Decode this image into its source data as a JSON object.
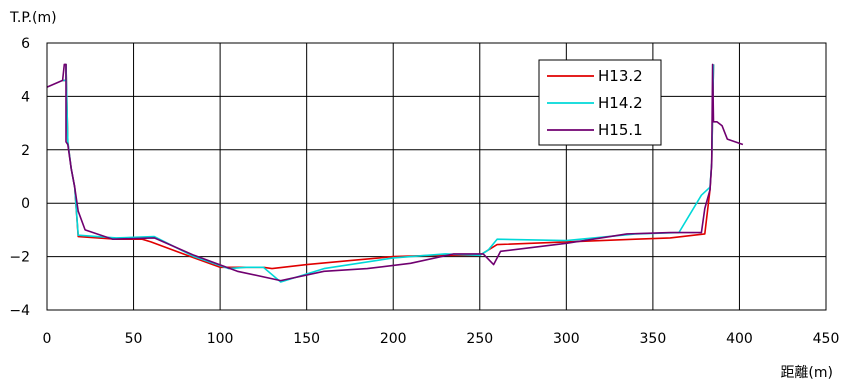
{
  "chart_data": {
    "type": "line",
    "title": "",
    "xlabel": "距離(m)",
    "ylabel": "T.P.(m)",
    "xlim": [
      0,
      450
    ],
    "ylim": [
      -4,
      6
    ],
    "xticks": [
      0,
      50,
      100,
      150,
      200,
      250,
      300,
      350,
      400,
      450
    ],
    "yticks": [
      6,
      4,
      2,
      0,
      -2,
      -4
    ],
    "ytick_labels": [
      "6",
      "4",
      "2",
      "0",
      "−2",
      "−4"
    ],
    "grid": true,
    "legend_position": "top-right",
    "series": [
      {
        "name": "H13.2",
        "color": "#e00000",
        "x": [
          9,
          11,
          11,
          12,
          14,
          16,
          18,
          40,
          55,
          60,
          85,
          100,
          110,
          125,
          130,
          150,
          175,
          200,
          225,
          250,
          255,
          260,
          300,
          340,
          360,
          380,
          383,
          384,
          385
        ],
        "y": [
          4.6,
          4.6,
          5.2,
          2.3,
          1.3,
          0.6,
          -1.25,
          -1.35,
          -1.35,
          -1.45,
          -2.05,
          -2.4,
          -2.4,
          -2.4,
          -2.45,
          -2.3,
          -2.15,
          -2.0,
          -1.95,
          -1.95,
          -1.75,
          -1.55,
          -1.45,
          -1.35,
          -1.3,
          -1.15,
          0.5,
          1.5,
          5.2
        ]
      },
      {
        "name": "H14.2",
        "color": "#00d8d8",
        "x": [
          9,
          11,
          11,
          12,
          14,
          16,
          18,
          40,
          62,
          85,
          105,
          115,
          125,
          135,
          160,
          200,
          230,
          250,
          255,
          260,
          300,
          340,
          365,
          378,
          383,
          384,
          385
        ],
        "y": [
          4.6,
          4.6,
          5.2,
          2.3,
          1.3,
          0.6,
          -1.2,
          -1.3,
          -1.25,
          -2.0,
          -2.45,
          -2.4,
          -2.4,
          -2.95,
          -2.45,
          -2.05,
          -1.9,
          -1.95,
          -1.75,
          -1.35,
          -1.4,
          -1.15,
          -1.1,
          0.3,
          0.6,
          1.5,
          5.2
        ]
      },
      {
        "name": "H15.1",
        "color": "#700070",
        "x": [
          0,
          9,
          10,
          11,
          11,
          12,
          14,
          16,
          18,
          22,
          38,
          62,
          85,
          110,
          135,
          160,
          185,
          210,
          235,
          252,
          258,
          262,
          300,
          335,
          360,
          378,
          380,
          383,
          384,
          384.5,
          385,
          387,
          390,
          393,
          402
        ],
        "y": [
          4.35,
          4.6,
          5.2,
          5.2,
          2.3,
          2.2,
          1.3,
          0.6,
          -0.3,
          -1.0,
          -1.35,
          -1.3,
          -1.95,
          -2.55,
          -2.9,
          -2.55,
          -2.45,
          -2.25,
          -1.9,
          -1.9,
          -2.3,
          -1.8,
          -1.5,
          -1.15,
          -1.1,
          -1.1,
          -0.2,
          0.5,
          1.5,
          5.2,
          3.05,
          3.05,
          2.9,
          2.4,
          2.2
        ]
      }
    ]
  }
}
